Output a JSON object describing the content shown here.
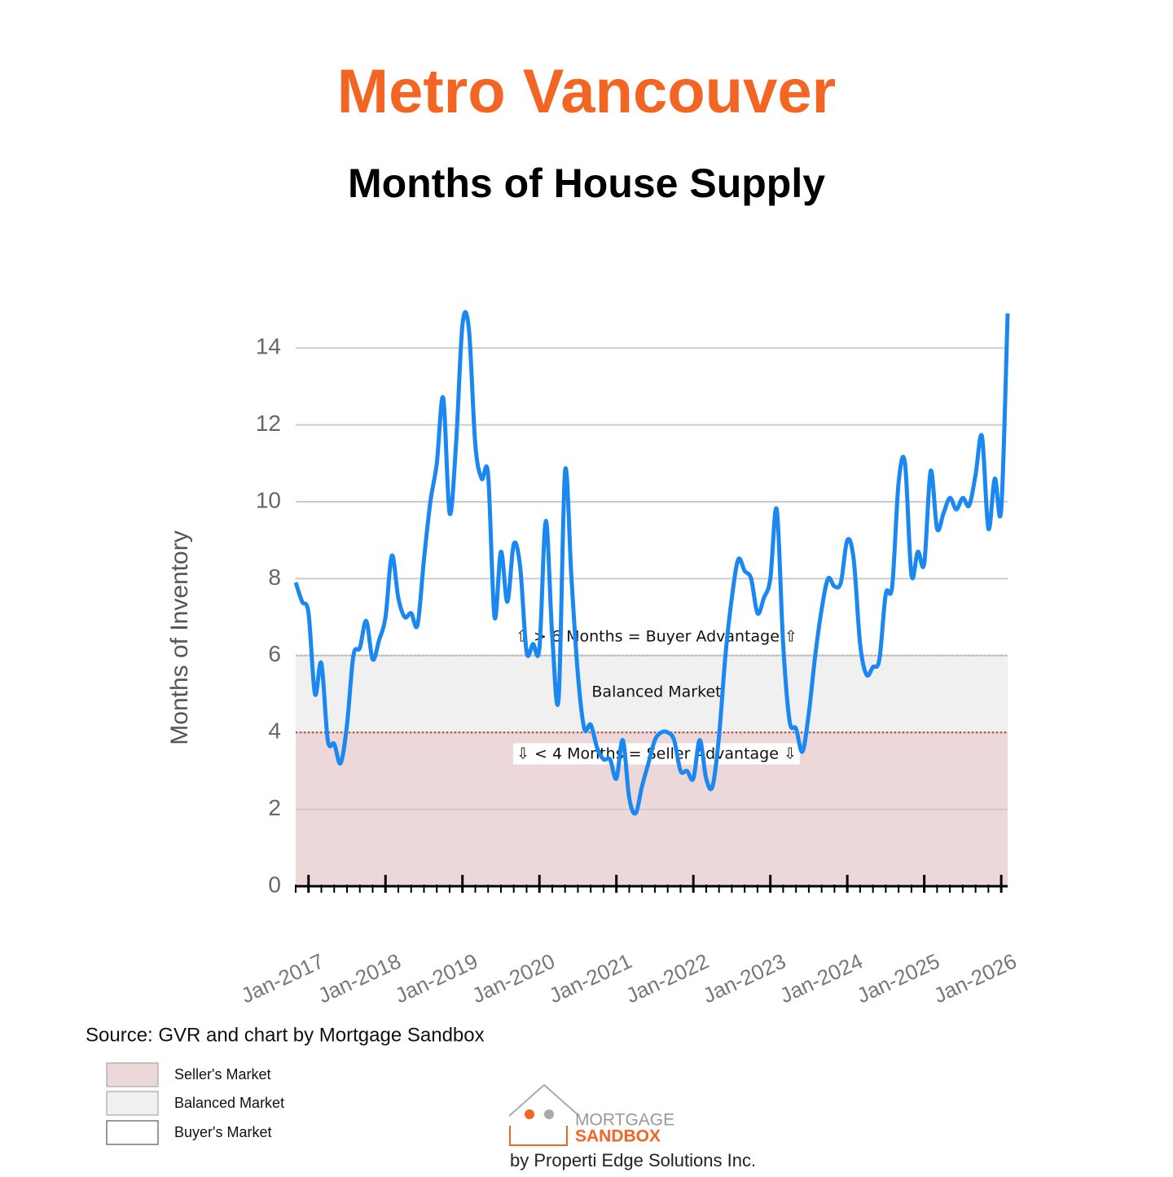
{
  "chart_data": {
    "type": "line",
    "title": "Metro Vancouver",
    "subtitle": "Months of House Supply",
    "y_label": "Months of Inventory",
    "categories": [
      null,
      null,
      "Jan-2017",
      null,
      null,
      null,
      null,
      null,
      null,
      null,
      null,
      null,
      null,
      null,
      "Jan-2018",
      null,
      null,
      null,
      null,
      null,
      null,
      null,
      null,
      null,
      null,
      null,
      "Jan-2019",
      null,
      null,
      null,
      null,
      null,
      null,
      null,
      null,
      null,
      null,
      null,
      "Jan-2020",
      null,
      null,
      null,
      null,
      null,
      null,
      null,
      null,
      null,
      null,
      null,
      "Jan-2021",
      null,
      null,
      null,
      null,
      null,
      null,
      null,
      null,
      null,
      null,
      null,
      "Jan-2022",
      null,
      null,
      null,
      null,
      null,
      null,
      null,
      null,
      null,
      null,
      null,
      "Jan-2023",
      null,
      null,
      null,
      null,
      null,
      null,
      null,
      null,
      null,
      null,
      null,
      "Jan-2024",
      null,
      null,
      null,
      null,
      null,
      null,
      null,
      null,
      null,
      null,
      null,
      "Jan-2025",
      null,
      null,
      null,
      null,
      null,
      null,
      null,
      null,
      null,
      null,
      null,
      "Jan-2026",
      null
    ],
    "series": [
      {
        "name": "Months of Inventory",
        "color": "#1a88f0",
        "values": [
          7.9,
          7.4,
          7.1,
          5.0,
          5.8,
          3.8,
          3.7,
          3.2,
          4.2,
          6.0,
          6.2,
          6.9,
          5.9,
          6.4,
          7.0,
          8.6,
          7.5,
          7.0,
          7.1,
          6.8,
          8.5,
          10.0,
          11.0,
          12.7,
          9.7,
          11.5,
          14.6,
          14.5,
          11.5,
          10.6,
          10.7,
          7.0,
          8.7,
          7.4,
          8.9,
          8.3,
          6.1,
          6.3,
          6.2,
          9.5,
          6.5,
          4.9,
          10.8,
          8.0,
          5.5,
          4.1,
          4.2,
          3.6,
          3.3,
          3.3,
          2.8,
          3.8,
          2.3,
          1.9,
          2.6,
          3.2,
          3.8,
          4.0,
          4.0,
          3.8,
          3.0,
          3.0,
          2.8,
          3.8,
          2.8,
          2.6,
          3.9,
          6.0,
          7.5,
          8.5,
          8.2,
          8.0,
          7.1,
          7.5,
          8.0,
          9.8,
          6.3,
          4.3,
          4.1,
          3.5,
          4.5,
          6.0,
          7.2,
          8.0,
          7.8,
          7.9,
          9.0,
          8.5,
          6.3,
          5.5,
          5.7,
          5.9,
          7.6,
          7.8,
          10.5,
          11.0,
          8.1,
          8.7,
          8.4,
          10.8,
          9.3,
          9.7,
          10.1,
          9.8,
          10.1,
          9.9,
          10.7,
          11.7,
          9.3,
          10.6,
          9.8,
          14.9
        ]
      }
    ],
    "ylim": [
      0,
      15
    ],
    "yticks": [
      0,
      2,
      4,
      6,
      8,
      10,
      12,
      14
    ],
    "grid": true,
    "bands": [
      {
        "name": "Seller's Market",
        "from": 0,
        "to": 4,
        "color": "#ecd8d8"
      },
      {
        "name": "Balanced Market",
        "from": 4,
        "to": 6,
        "color": "#f0f0f0"
      },
      {
        "name": "Buyer's Market",
        "from": 6,
        "to": 15,
        "color": "#ffffff"
      }
    ],
    "annotations": {
      "buyer": "⇧ > 6 Months = Buyer Advantage ⇧",
      "balanced": "Balanced Market",
      "seller": "⇩ < 4 Months = Seller Advantage ⇩"
    },
    "source": "Source: GVR and chart by Mortgage Sandbox",
    "logo": {
      "line1": "MORTGAGE",
      "line2": "SANDBOX",
      "byline": "by Properti Edge Solutions Inc."
    }
  }
}
